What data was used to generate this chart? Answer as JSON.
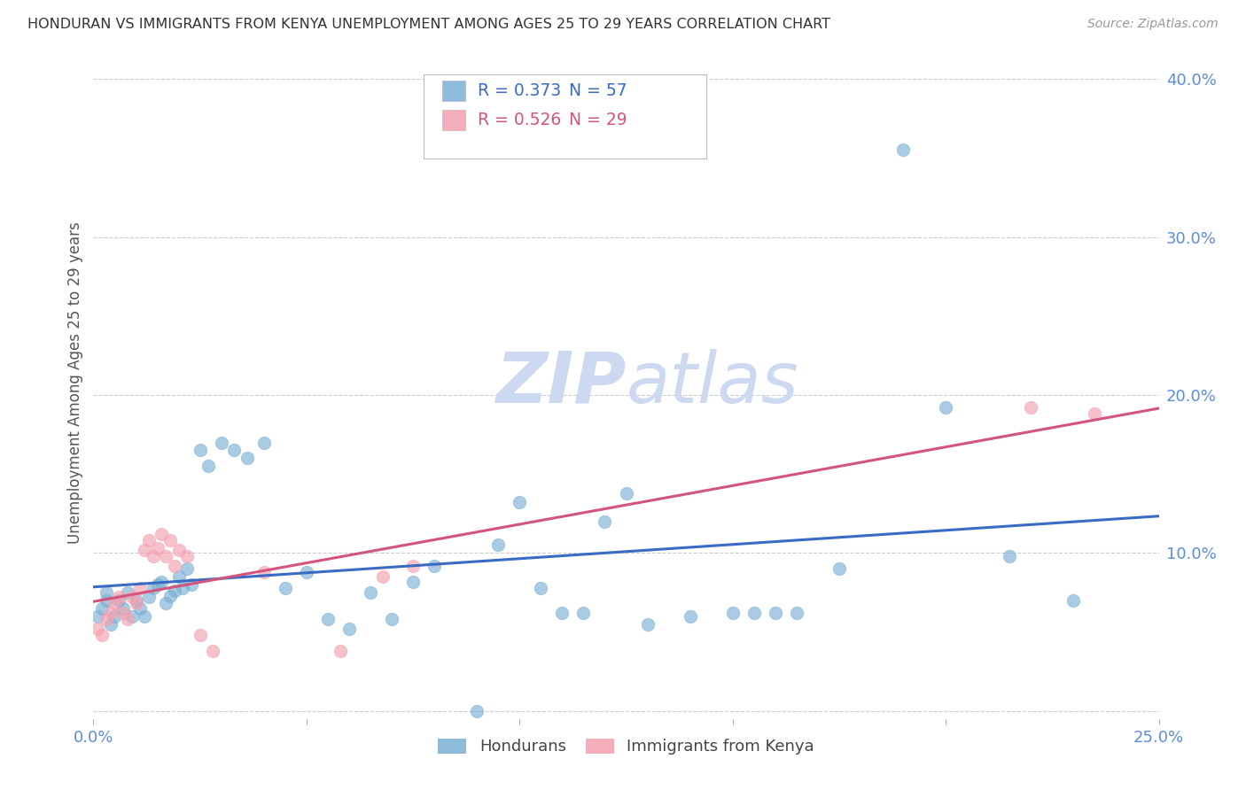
{
  "title": "HONDURAN VS IMMIGRANTS FROM KENYA UNEMPLOYMENT AMONG AGES 25 TO 29 YEARS CORRELATION CHART",
  "source": "Source: ZipAtlas.com",
  "ylabel": "Unemployment Among Ages 25 to 29 years",
  "xlim": [
    0.0,
    0.25
  ],
  "ylim": [
    -0.005,
    0.42
  ],
  "yticks": [
    0.0,
    0.1,
    0.2,
    0.3,
    0.4
  ],
  "ytick_labels": [
    "",
    "10.0%",
    "20.0%",
    "30.0%",
    "40.0%"
  ],
  "xticks": [
    0.0,
    0.05,
    0.1,
    0.15,
    0.2,
    0.25
  ],
  "xtick_labels": [
    "0.0%",
    "",
    "",
    "",
    "",
    "25.0%"
  ],
  "blue_color": "#7bafd4",
  "pink_color": "#f4a0b0",
  "trendline_blue_color": "#3a6bc4",
  "trendline_pink_color": "#d4547a",
  "axis_label_color": "#5b8dd9",
  "watermark_color": "#ccd9f0",
  "hondurans_x": [
    0.001,
    0.002,
    0.003,
    0.003,
    0.004,
    0.005,
    0.006,
    0.007,
    0.008,
    0.009,
    0.01,
    0.011,
    0.012,
    0.013,
    0.014,
    0.015,
    0.016,
    0.017,
    0.018,
    0.019,
    0.02,
    0.021,
    0.022,
    0.023,
    0.025,
    0.027,
    0.03,
    0.033,
    0.036,
    0.04,
    0.045,
    0.05,
    0.055,
    0.06,
    0.065,
    0.07,
    0.075,
    0.08,
    0.09,
    0.095,
    0.1,
    0.105,
    0.11,
    0.115,
    0.12,
    0.125,
    0.13,
    0.14,
    0.15,
    0.155,
    0.16,
    0.165,
    0.175,
    0.19,
    0.2,
    0.215,
    0.23
  ],
  "hondurans_y": [
    0.06,
    0.065,
    0.07,
    0.075,
    0.055,
    0.06,
    0.07,
    0.065,
    0.075,
    0.06,
    0.07,
    0.065,
    0.06,
    0.072,
    0.078,
    0.08,
    0.082,
    0.068,
    0.073,
    0.076,
    0.085,
    0.078,
    0.09,
    0.08,
    0.165,
    0.155,
    0.17,
    0.165,
    0.16,
    0.17,
    0.078,
    0.088,
    0.058,
    0.052,
    0.075,
    0.058,
    0.082,
    0.092,
    0.0,
    0.105,
    0.132,
    0.078,
    0.062,
    0.062,
    0.12,
    0.138,
    0.055,
    0.06,
    0.062,
    0.062,
    0.062,
    0.062,
    0.09,
    0.355,
    0.192,
    0.098,
    0.07
  ],
  "kenya_x": [
    0.001,
    0.002,
    0.003,
    0.004,
    0.005,
    0.006,
    0.007,
    0.008,
    0.009,
    0.01,
    0.011,
    0.012,
    0.013,
    0.014,
    0.015,
    0.016,
    0.017,
    0.018,
    0.019,
    0.02,
    0.022,
    0.025,
    0.028,
    0.04,
    0.058,
    0.068,
    0.075,
    0.22,
    0.235
  ],
  "kenya_y": [
    0.052,
    0.048,
    0.058,
    0.062,
    0.068,
    0.072,
    0.062,
    0.058,
    0.072,
    0.068,
    0.078,
    0.102,
    0.108,
    0.098,
    0.103,
    0.112,
    0.098,
    0.108,
    0.092,
    0.102,
    0.098,
    0.048,
    0.038,
    0.088,
    0.038,
    0.085,
    0.092,
    0.192,
    0.188
  ]
}
